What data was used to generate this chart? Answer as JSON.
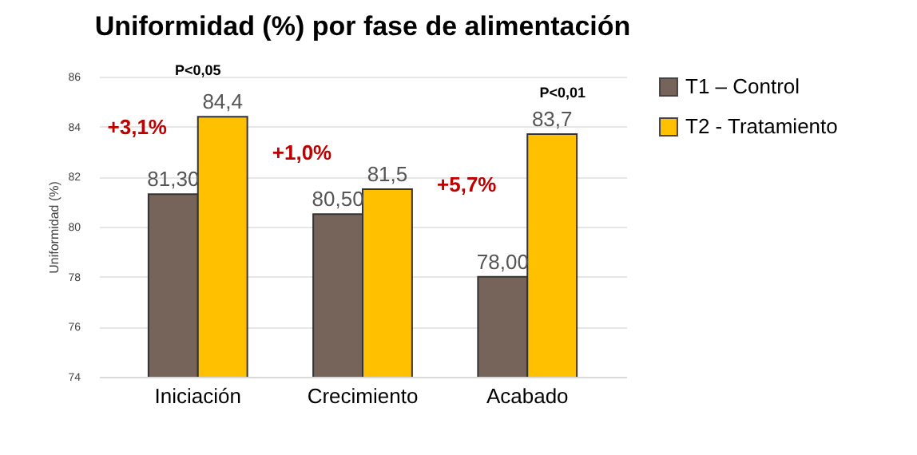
{
  "chart_data": {
    "type": "bar",
    "title": "Uniformidad (%) por fase de alimentación",
    "ylabel": "Uniformidad (%)",
    "categories": [
      "Iniciación",
      "Crecimiento",
      "Acabado"
    ],
    "series": [
      {
        "name": "T1 – Control",
        "color": "#76645a",
        "values": [
          81.3,
          80.5,
          78.0
        ],
        "value_labels": [
          "81,30",
          "80,50",
          "78,00"
        ]
      },
      {
        "name": "T2 - Tratamiento",
        "color": "#ffc000",
        "values": [
          84.4,
          81.5,
          83.7
        ],
        "value_labels": [
          "84,4",
          "81,5",
          "83,7"
        ]
      }
    ],
    "ylim": [
      74,
      86
    ],
    "yticks": [
      74,
      76,
      78,
      80,
      82,
      84,
      86
    ],
    "grid": "y",
    "legend": "right",
    "annotations": [
      "+3,1%",
      "+1,0%",
      "+5,7%",
      "P<0,05",
      "P<0,01"
    ]
  }
}
